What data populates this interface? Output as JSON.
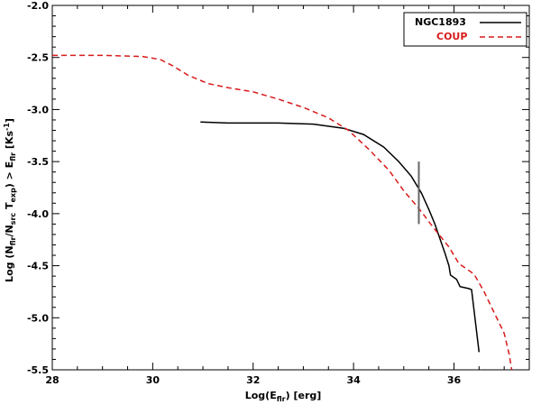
{
  "chart_data": {
    "type": "line",
    "title": "",
    "xlabel": "Log(E_flr) [erg]",
    "ylabel": "Log (N_flr/N_src T_exp) > E_flr [Ks^-1]",
    "xlim": [
      28,
      37.5
    ],
    "ylim": [
      -5.5,
      -2.0
    ],
    "x_ticks": [
      28,
      30,
      32,
      34,
      36
    ],
    "y_ticks": [
      -2.0,
      -2.5,
      -3.0,
      -3.5,
      -4.0,
      -4.5,
      -5.0,
      -5.5
    ],
    "legend_position": "top-right",
    "series": [
      {
        "name": "NGC1893",
        "color": "#000000",
        "style": "solid",
        "points": [
          [
            30.95,
            -3.12
          ],
          [
            31.5,
            -3.13
          ],
          [
            32.5,
            -3.13
          ],
          [
            33.2,
            -3.14
          ],
          [
            33.8,
            -3.18
          ],
          [
            34.2,
            -3.24
          ],
          [
            34.6,
            -3.36
          ],
          [
            34.9,
            -3.5
          ],
          [
            35.15,
            -3.64
          ],
          [
            35.35,
            -3.8
          ],
          [
            35.5,
            -3.96
          ],
          [
            35.62,
            -4.1
          ],
          [
            35.72,
            -4.24
          ],
          [
            35.82,
            -4.38
          ],
          [
            35.9,
            -4.5
          ],
          [
            35.93,
            -4.59
          ],
          [
            36.05,
            -4.63
          ],
          [
            36.12,
            -4.7
          ],
          [
            36.3,
            -4.72
          ],
          [
            36.35,
            -4.73
          ],
          [
            36.5,
            -5.33
          ]
        ]
      },
      {
        "name": "COUP",
        "color": "#d81b1b",
        "style": "dashed",
        "points": [
          [
            28.0,
            -2.48
          ],
          [
            29.0,
            -2.48
          ],
          [
            29.8,
            -2.49
          ],
          [
            30.15,
            -2.52
          ],
          [
            30.4,
            -2.58
          ],
          [
            30.7,
            -2.67
          ],
          [
            31.1,
            -2.75
          ],
          [
            31.5,
            -2.79
          ],
          [
            32.0,
            -2.83
          ],
          [
            32.5,
            -2.9
          ],
          [
            33.0,
            -2.98
          ],
          [
            33.5,
            -3.08
          ],
          [
            33.9,
            -3.2
          ],
          [
            34.3,
            -3.38
          ],
          [
            34.7,
            -3.58
          ],
          [
            35.0,
            -3.78
          ],
          [
            35.3,
            -3.95
          ],
          [
            35.6,
            -4.14
          ],
          [
            35.9,
            -4.32
          ],
          [
            36.1,
            -4.48
          ],
          [
            36.4,
            -4.58
          ],
          [
            36.6,
            -4.75
          ],
          [
            36.8,
            -4.95
          ],
          [
            37.0,
            -5.15
          ],
          [
            37.1,
            -5.35
          ],
          [
            37.15,
            -5.5
          ]
        ]
      }
    ],
    "error_bar": {
      "x": 35.3,
      "y_low": -4.1,
      "y_high": -3.5,
      "color": "#666666"
    }
  }
}
